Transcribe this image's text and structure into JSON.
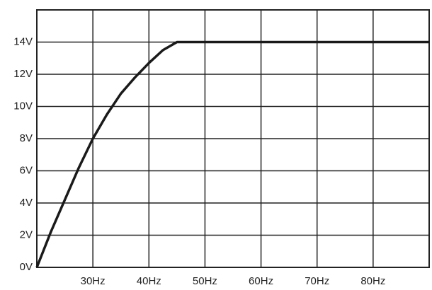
{
  "chart_data": {
    "type": "line",
    "x": [
      20,
      22.5,
      25,
      27.5,
      30,
      32.5,
      35,
      37.5,
      40,
      42.5,
      45,
      90
    ],
    "values": [
      0,
      2.2,
      4.2,
      6.2,
      8,
      9.5,
      10.8,
      11.8,
      12.7,
      13.5,
      14,
      14
    ],
    "color": "#1a1a1a",
    "xlim": [
      20,
      90
    ],
    "xticks": [
      {
        "value": 30,
        "label": "30Hz"
      },
      {
        "value": 40,
        "label": "40Hz"
      },
      {
        "value": 50,
        "label": "50Hz"
      },
      {
        "value": 60,
        "label": "60Hz"
      },
      {
        "value": 70,
        "label": "70Hz"
      },
      {
        "value": 80,
        "label": "80Hz"
      }
    ],
    "ylim": [
      0,
      16
    ],
    "yticks": [
      {
        "value": 0,
        "label": "0V"
      },
      {
        "value": 2,
        "label": "2V"
      },
      {
        "value": 4,
        "label": "4V"
      },
      {
        "value": 6,
        "label": "6V"
      },
      {
        "value": 8,
        "label": "8V"
      },
      {
        "value": 10,
        "label": "10V"
      },
      {
        "value": 12,
        "label": "12V"
      },
      {
        "value": 14,
        "label": "14V"
      }
    ],
    "grid": true
  }
}
